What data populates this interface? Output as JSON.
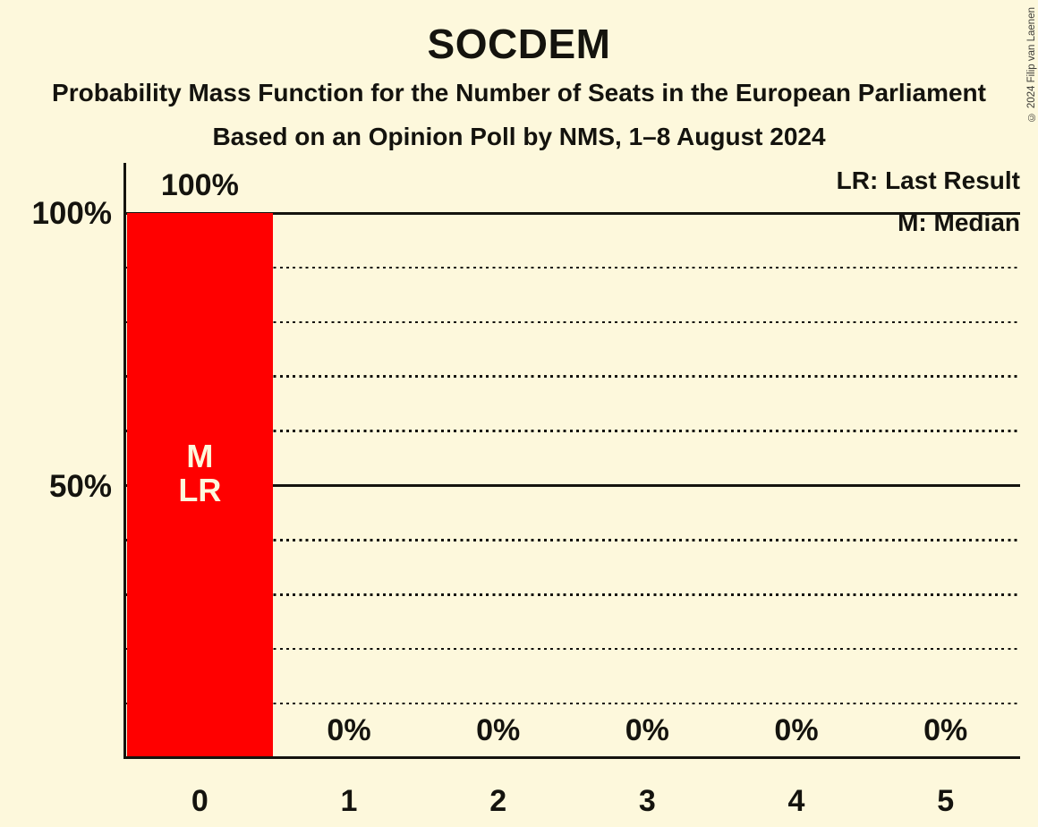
{
  "page": {
    "background_color": "#FDF8DC",
    "copyright": "© 2024 Filip van Laenen"
  },
  "chart_data": {
    "type": "bar",
    "title": "SOCDEM",
    "subtitle1": "Probability Mass Function for the Number of Seats in the European Parliament",
    "subtitle2": "Based on an Opinion Poll by NMS, 1–8 August 2024",
    "xlabel": "",
    "ylabel": "",
    "categories": [
      "0",
      "1",
      "2",
      "3",
      "4",
      "5"
    ],
    "values": [
      100,
      0,
      0,
      0,
      0,
      0
    ],
    "value_labels": [
      "100%",
      "0%",
      "0%",
      "0%",
      "0%",
      "0%"
    ],
    "ylim": [
      0,
      100
    ],
    "y_axis_ticks": [
      {
        "pct": 100,
        "label": "100%"
      },
      {
        "pct": 50,
        "label": "50%"
      }
    ],
    "gridlines": {
      "solid_pct": [
        100,
        50
      ],
      "dotted_pct": [
        90,
        80,
        70,
        60,
        40,
        30,
        20,
        10
      ]
    },
    "grid": "horizontal",
    "legend_position": "top-right",
    "legend": [
      {
        "label": "LR: Last Result"
      },
      {
        "label": "M: Median"
      }
    ],
    "annotations": {
      "bar_markers": [
        {
          "category_index": 0,
          "lines": [
            "M",
            "LR"
          ]
        }
      ]
    },
    "colors": {
      "bar": "#FF0000",
      "text": "#14130E",
      "bar_marker_text": "#FDF8DC",
      "background": "#FDF8DC"
    }
  }
}
